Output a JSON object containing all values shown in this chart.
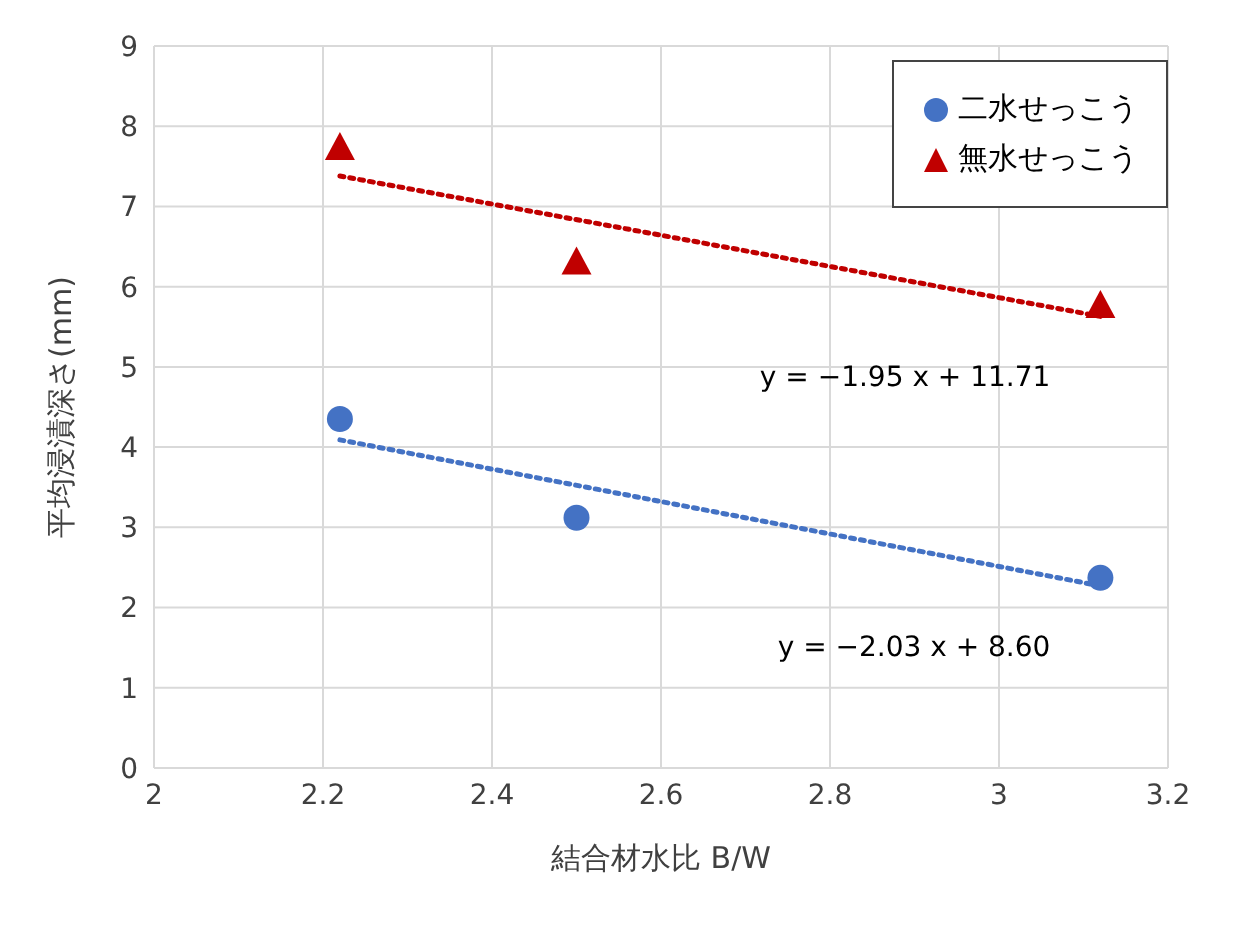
{
  "chart_data": {
    "type": "scatter",
    "xlabel": "結合材水比  B/W",
    "ylabel": "平均浸漬深さ(mm)",
    "xlim": [
      2,
      3.2
    ],
    "xticks": [
      2,
      2.2,
      2.4,
      2.6,
      2.8,
      3,
      3.2
    ],
    "ylim": [
      0,
      9
    ],
    "yticks": [
      0,
      1,
      2,
      3,
      4,
      5,
      6,
      7,
      8,
      9
    ],
    "grid": true,
    "legend": "top right",
    "series": [
      {
        "name": "二水せっこう",
        "type": "scatter",
        "marker": "circle",
        "color": "#4472c4",
        "x": [
          2.22,
          2.5,
          3.12
        ],
        "values": [
          4.35,
          3.12,
          2.37
        ]
      },
      {
        "name": "無水せっこう",
        "type": "scatter",
        "marker": "triangle",
        "color": "#c00000",
        "x": [
          2.22,
          2.5,
          3.12
        ],
        "values": [
          7.73,
          6.3,
          5.76
        ]
      },
      {
        "type": "line",
        "line_style": "dotted",
        "color": "#c00000",
        "x": [
          2.22,
          3.12
        ],
        "values": [
          7.38,
          5.63
        ]
      },
      {
        "type": "line",
        "line_style": "dotted",
        "color": "#4472c4",
        "x": [
          2.22,
          3.12
        ],
        "values": [
          4.09,
          2.27
        ]
      }
    ],
    "annotations": [
      "y = −1.95 x + 11.71",
      "y = −2.03 x + 8.60"
    ]
  }
}
